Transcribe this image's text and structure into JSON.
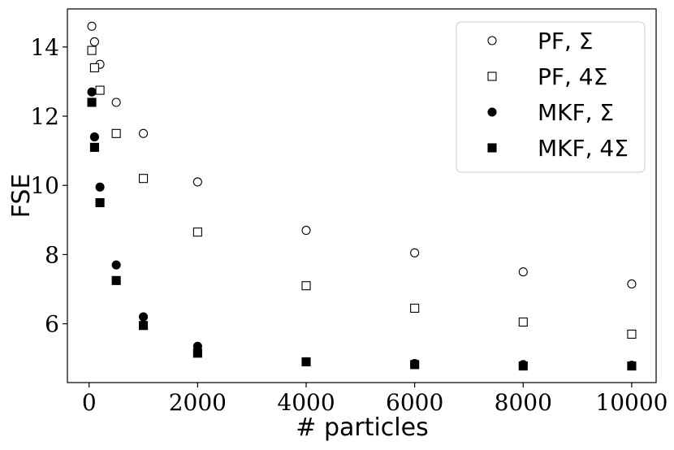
{
  "chart_data": {
    "type": "scatter",
    "title": "",
    "xlabel": "# particles",
    "ylabel": "FSE",
    "xlim": [
      -400,
      10450
    ],
    "ylim": [
      4.3,
      15.1
    ],
    "xticks": [
      0,
      2000,
      4000,
      6000,
      8000,
      10000
    ],
    "xtick_labels": [
      "0",
      "2000",
      "4000",
      "6000",
      "8000",
      "10000"
    ],
    "yticks": [
      6,
      8,
      10,
      12,
      14
    ],
    "ytick_labels": [
      "6",
      "8",
      "10",
      "12",
      "14"
    ],
    "grid": false,
    "legend_position": "top-right",
    "series": [
      {
        "name": "PF, Σ",
        "marker": "circle-open",
        "x": [
          50,
          100,
          200,
          500,
          1000,
          2000,
          4000,
          6000,
          8000,
          10000
        ],
        "y": [
          14.6,
          14.15,
          13.5,
          12.4,
          11.5,
          10.1,
          8.7,
          8.05,
          7.5,
          7.15
        ]
      },
      {
        "name": "PF, 4Σ",
        "marker": "square-open",
        "x": [
          50,
          100,
          200,
          500,
          1000,
          2000,
          4000,
          6000,
          8000,
          10000
        ],
        "y": [
          13.9,
          13.4,
          12.75,
          11.5,
          10.2,
          8.65,
          7.1,
          6.45,
          6.05,
          5.7
        ]
      },
      {
        "name": "MKF, Σ",
        "marker": "circle-filled",
        "x": [
          50,
          100,
          200,
          500,
          1000,
          2000,
          4000,
          6000,
          8000,
          10000
        ],
        "y": [
          12.7,
          11.4,
          9.95,
          7.7,
          6.2,
          5.35,
          4.9,
          4.85,
          4.82,
          4.8
        ]
      },
      {
        "name": "MKF, 4Σ",
        "marker": "square-filled",
        "x": [
          50,
          100,
          200,
          500,
          1000,
          2000,
          4000,
          6000,
          8000,
          10000
        ],
        "y": [
          12.4,
          11.1,
          9.5,
          7.25,
          5.95,
          5.15,
          4.9,
          4.82,
          4.78,
          4.78
        ]
      }
    ]
  }
}
